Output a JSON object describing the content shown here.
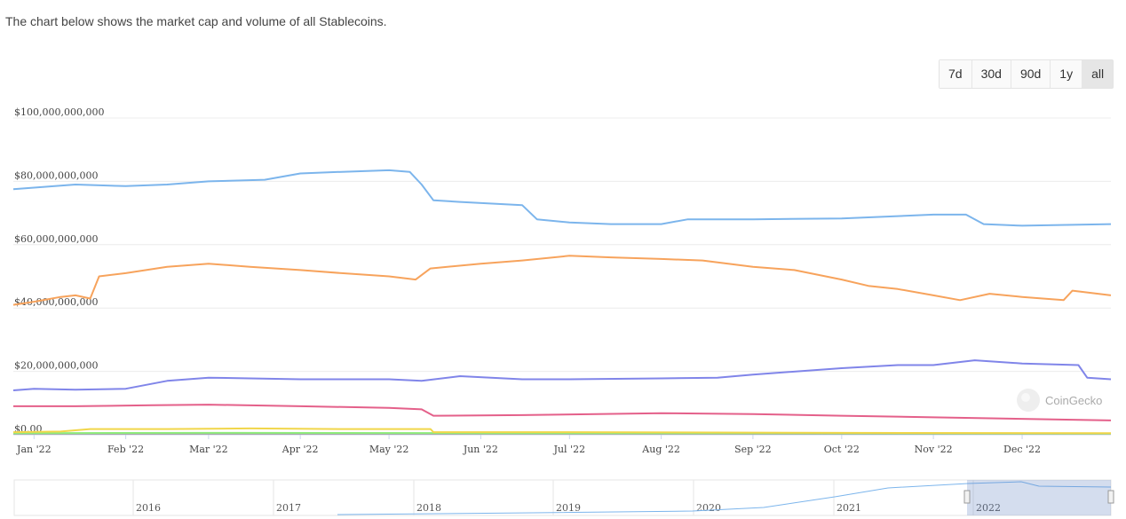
{
  "header": {
    "subtitle": "The chart below shows the market cap and volume of all Stablecoins."
  },
  "range_buttons": [
    {
      "label": "7d",
      "active": false
    },
    {
      "label": "30d",
      "active": false
    },
    {
      "label": "90d",
      "active": false
    },
    {
      "label": "1y",
      "active": false
    },
    {
      "label": "all",
      "active": true
    }
  ],
  "credit": "CoinGecko",
  "navigator": {
    "years": [
      "2016",
      "2017",
      "2018",
      "2019",
      "2020",
      "2021",
      "2022"
    ]
  },
  "chart_data": {
    "type": "line",
    "title": "",
    "xlabel": "",
    "ylabel": "",
    "ylim": [
      0,
      100000000000
    ],
    "y_ticks": [
      "$0.00",
      "$20,000,000,000",
      "$40,000,000,000",
      "$60,000,000,000",
      "$80,000,000,000",
      "$100,000,000,000"
    ],
    "y_tick_values": [
      0,
      20000000000,
      40000000000,
      60000000000,
      80000000000,
      100000000000
    ],
    "x_ticks": [
      "Jan '22",
      "Feb '22",
      "Mar '22",
      "Apr '22",
      "May '22",
      "Jun '22",
      "Jul '22",
      "Aug '22",
      "Sep '22",
      "Oct '22",
      "Nov '22",
      "Dec '22"
    ],
    "xlim": [
      "2021-12-25",
      "2022-12-31"
    ],
    "grid": true,
    "series": [
      {
        "color": "#7cb5ec",
        "points": [
          [
            "2021-12-25",
            77.5
          ],
          [
            "2022-01-01",
            78.0
          ],
          [
            "2022-01-15",
            79.0
          ],
          [
            "2022-02-01",
            78.5
          ],
          [
            "2022-02-15",
            79.0
          ],
          [
            "2022-03-01",
            80.0
          ],
          [
            "2022-03-20",
            80.5
          ],
          [
            "2022-04-01",
            82.5
          ],
          [
            "2022-04-15",
            83.0
          ],
          [
            "2022-05-01",
            83.5
          ],
          [
            "2022-05-08",
            83.0
          ],
          [
            "2022-05-12",
            79.0
          ],
          [
            "2022-05-16",
            74.0
          ],
          [
            "2022-05-25",
            73.5
          ],
          [
            "2022-06-15",
            72.5
          ],
          [
            "2022-06-20",
            68.0
          ],
          [
            "2022-07-01",
            67.0
          ],
          [
            "2022-07-15",
            66.5
          ],
          [
            "2022-08-01",
            66.5
          ],
          [
            "2022-08-10",
            68.0
          ],
          [
            "2022-09-01",
            68.0
          ],
          [
            "2022-10-01",
            68.3
          ],
          [
            "2022-11-01",
            69.5
          ],
          [
            "2022-11-12",
            69.5
          ],
          [
            "2022-11-18",
            66.5
          ],
          [
            "2022-12-01",
            66.0
          ],
          [
            "2022-12-31",
            66.5
          ]
        ]
      },
      {
        "color": "#f7a35c",
        "points": [
          [
            "2021-12-25",
            41.0
          ],
          [
            "2022-01-01",
            42.0
          ],
          [
            "2022-01-10",
            43.5
          ],
          [
            "2022-01-15",
            44.0
          ],
          [
            "2022-01-20",
            43.0
          ],
          [
            "2022-01-23",
            50.0
          ],
          [
            "2022-02-01",
            51.0
          ],
          [
            "2022-02-15",
            53.0
          ],
          [
            "2022-03-01",
            54.0
          ],
          [
            "2022-03-15",
            53.0
          ],
          [
            "2022-04-01",
            52.0
          ],
          [
            "2022-04-15",
            51.0
          ],
          [
            "2022-05-01",
            50.0
          ],
          [
            "2022-05-10",
            49.0
          ],
          [
            "2022-05-15",
            52.5
          ],
          [
            "2022-06-01",
            54.0
          ],
          [
            "2022-06-15",
            55.0
          ],
          [
            "2022-07-01",
            56.5
          ],
          [
            "2022-07-15",
            56.0
          ],
          [
            "2022-08-01",
            55.5
          ],
          [
            "2022-08-15",
            55.0
          ],
          [
            "2022-09-01",
            53.0
          ],
          [
            "2022-09-15",
            52.0
          ],
          [
            "2022-10-01",
            49.0
          ],
          [
            "2022-10-10",
            47.0
          ],
          [
            "2022-10-20",
            46.0
          ],
          [
            "2022-11-01",
            44.0
          ],
          [
            "2022-11-10",
            42.5
          ],
          [
            "2022-11-20",
            44.5
          ],
          [
            "2022-12-01",
            43.5
          ],
          [
            "2022-12-15",
            42.5
          ],
          [
            "2022-12-18",
            45.5
          ],
          [
            "2022-12-31",
            44.0
          ]
        ]
      },
      {
        "color": "#8085e9",
        "points": [
          [
            "2021-12-25",
            14.0
          ],
          [
            "2022-01-01",
            14.5
          ],
          [
            "2022-01-15",
            14.2
          ],
          [
            "2022-02-01",
            14.5
          ],
          [
            "2022-02-15",
            17.0
          ],
          [
            "2022-03-01",
            18.0
          ],
          [
            "2022-03-15",
            17.8
          ],
          [
            "2022-04-01",
            17.5
          ],
          [
            "2022-04-15",
            17.5
          ],
          [
            "2022-05-01",
            17.5
          ],
          [
            "2022-05-12",
            17.0
          ],
          [
            "2022-05-25",
            18.5
          ],
          [
            "2022-06-15",
            17.5
          ],
          [
            "2022-07-01",
            17.5
          ],
          [
            "2022-08-01",
            17.8
          ],
          [
            "2022-08-20",
            18.0
          ],
          [
            "2022-09-01",
            19.0
          ],
          [
            "2022-10-01",
            21.0
          ],
          [
            "2022-10-20",
            22.0
          ],
          [
            "2022-11-01",
            22.0
          ],
          [
            "2022-11-15",
            23.5
          ],
          [
            "2022-12-01",
            22.5
          ],
          [
            "2022-12-20",
            22.0
          ],
          [
            "2022-12-23",
            18.0
          ],
          [
            "2022-12-31",
            17.5
          ]
        ]
      },
      {
        "color": "#e4608a",
        "points": [
          [
            "2021-12-25",
            9.0
          ],
          [
            "2022-01-15",
            9.0
          ],
          [
            "2022-02-10",
            9.3
          ],
          [
            "2022-03-01",
            9.5
          ],
          [
            "2022-04-01",
            9.0
          ],
          [
            "2022-05-01",
            8.5
          ],
          [
            "2022-05-12",
            8.0
          ],
          [
            "2022-05-16",
            6.0
          ],
          [
            "2022-06-15",
            6.2
          ],
          [
            "2022-08-01",
            6.8
          ],
          [
            "2022-09-01",
            6.5
          ],
          [
            "2022-10-01",
            6.0
          ],
          [
            "2022-11-01",
            5.5
          ],
          [
            "2022-12-31",
            4.5
          ]
        ]
      },
      {
        "color": "#f1d64a",
        "points": [
          [
            "2021-12-25",
            0.8
          ],
          [
            "2022-01-10",
            1.0
          ],
          [
            "2022-01-20",
            1.8
          ],
          [
            "2022-02-15",
            1.8
          ],
          [
            "2022-03-15",
            2.0
          ],
          [
            "2022-04-15",
            1.8
          ],
          [
            "2022-05-15",
            1.8
          ],
          [
            "2022-05-16",
            0.8
          ],
          [
            "2022-07-01",
            0.8
          ],
          [
            "2022-10-01",
            0.6
          ],
          [
            "2022-12-31",
            0.5
          ]
        ]
      },
      {
        "color": "#90ed7d",
        "points": [
          [
            "2021-12-25",
            0.5
          ],
          [
            "2022-03-01",
            0.6
          ],
          [
            "2022-06-01",
            0.5
          ],
          [
            "2022-09-01",
            0.5
          ],
          [
            "2022-12-31",
            0.4
          ]
        ]
      },
      {
        "color": "#a0a0a0",
        "points": [
          [
            "2021-12-25",
            0.3
          ],
          [
            "2022-06-01",
            0.3
          ],
          [
            "2022-12-31",
            0.3
          ]
        ]
      }
    ]
  }
}
